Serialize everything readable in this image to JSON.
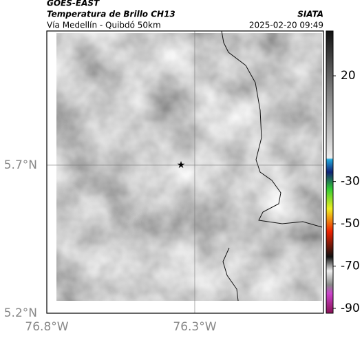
{
  "header": {
    "title": "GOES-EAST",
    "subtitle": "Temperatura de Brillo CH13",
    "region": "Vía Medellín - Quibdó 50km",
    "source": "SIATA",
    "datetime": "2025-02-20 09:49"
  },
  "map": {
    "xlim": [
      -76.8,
      -75.865
    ],
    "ylim": [
      5.2,
      6.153
    ],
    "xticks": [
      {
        "value": -76.8,
        "label": "76.8°W"
      },
      {
        "value": -76.3,
        "label": "76.3°W"
      }
    ],
    "yticks": [
      {
        "value": 5.7,
        "label": "5.7°N"
      },
      {
        "value": 5.2,
        "label": "5.2°N"
      }
    ]
  },
  "colorbar": {
    "lim": [
      -92.3,
      41.2
    ],
    "ticks": [
      20,
      -30,
      -50,
      -70,
      -90
    ]
  }
}
